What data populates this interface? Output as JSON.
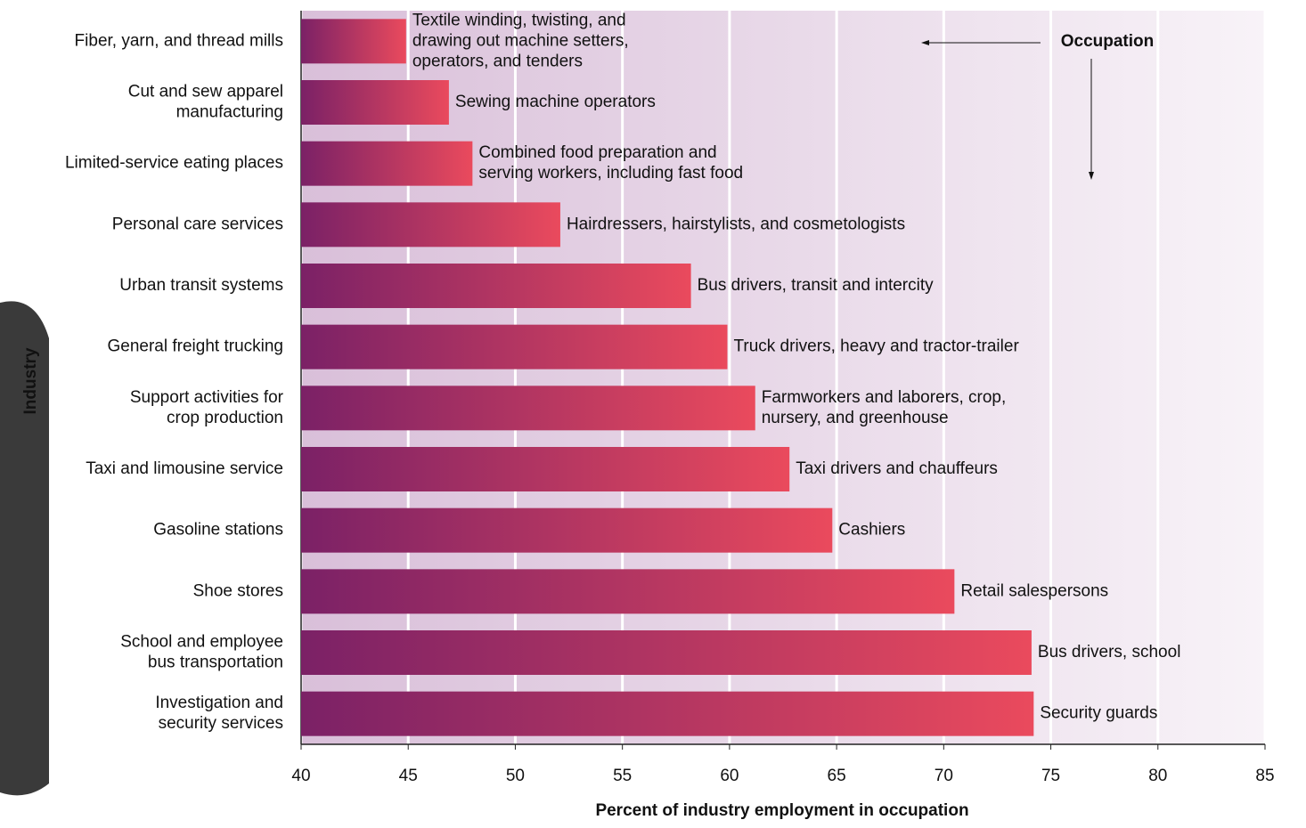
{
  "chart_data": {
    "type": "bar",
    "orientation": "horizontal",
    "x_label": "Percent of industry employment in occupation",
    "y_label": "Industry",
    "annotation": "Occupation",
    "categories": [
      "Fiber, yarn, and thread mills",
      "Cut and sew apparel\nmanufacturing",
      "Limited-service eating places",
      "Personal care services",
      "Urban transit systems",
      "General freight trucking",
      "Support activities for\ncrop production",
      "Taxi and limousine service",
      "Gasoline stations",
      "Shoe stores",
      "School and employee\nbus transportation",
      "Investigation and\nsecurity services"
    ],
    "values": [
      44.9,
      46.9,
      48.0,
      52.1,
      58.2,
      59.9,
      61.2,
      62.8,
      64.8,
      70.5,
      74.1,
      74.2
    ],
    "occupations": [
      "Textile winding, twisting, and\ndrawing out machine setters,\noperators, and tenders",
      "Sewing machine operators",
      "Combined food preparation and\nserving workers, including fast food",
      "Hairdressers, hairstylists, and cosmetologists",
      "Bus drivers, transit and intercity",
      "Truck drivers, heavy and tractor-trailer",
      "Farmworkers and laborers, crop,\nnursery, and greenhouse",
      "Taxi drivers and chauffeurs",
      "Cashiers",
      "Retail salespersons",
      "Bus drivers, school",
      "Security guards"
    ],
    "colors": [
      "#7b2166",
      "#ea4a5d"
    ],
    "xlim": [
      40,
      85
    ],
    "xticks": [
      40,
      45,
      50,
      55,
      60,
      65,
      70,
      75,
      80,
      85
    ],
    "grid": true
  }
}
